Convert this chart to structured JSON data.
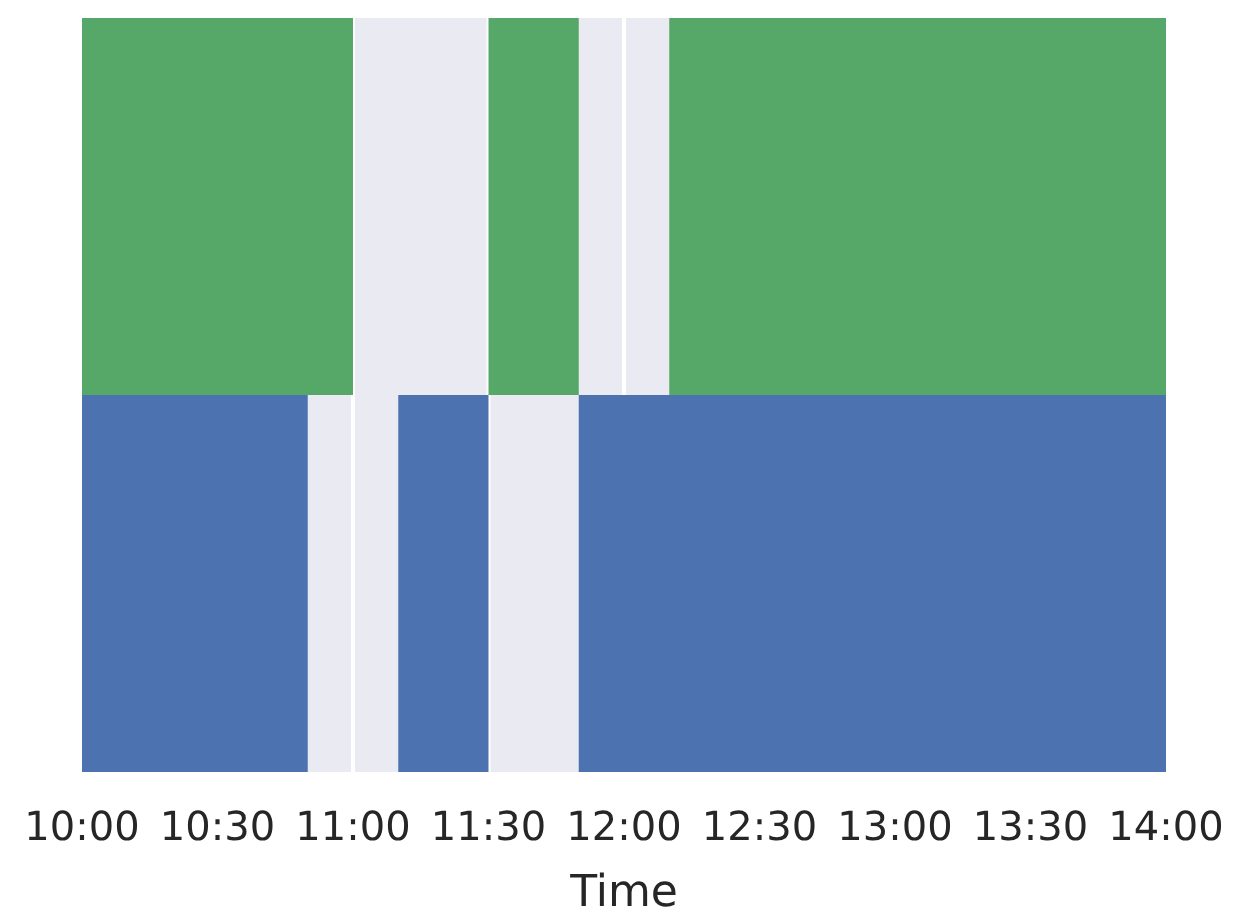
{
  "chart_data": {
    "type": "bar",
    "orientation": "horizontal",
    "xlabel": "Time",
    "categories": [
      null,
      null
    ],
    "series": [
      {
        "color": "#55a868",
        "values": [
          1,
          null
        ],
        "base": [
          10,
          null
        ]
      },
      {
        "color": "#55a868",
        "values": [
          0.333,
          null
        ],
        "base": [
          11.5,
          null
        ]
      },
      {
        "color": "#55a868",
        "values": [
          1.833,
          null
        ],
        "base": [
          12.167,
          null
        ]
      },
      {
        "color": "#4c72b0",
        "values": [
          null,
          0.833
        ],
        "base": [
          null,
          10
        ]
      },
      {
        "color": "#4c72b0",
        "values": [
          null,
          0.333
        ],
        "base": [
          null,
          11.167
        ]
      },
      {
        "color": "#4c72b0",
        "values": [
          null,
          2.167
        ],
        "base": [
          null,
          11.833
        ]
      }
    ],
    "xlim": [
      10,
      14
    ],
    "xticks": [
      {
        "value": 10,
        "label": "10:00"
      },
      {
        "value": 10.5,
        "label": "10:30"
      },
      {
        "value": 11,
        "label": "11:00"
      },
      {
        "value": 11.5,
        "label": "11:30"
      },
      {
        "value": 12,
        "label": "12:00"
      },
      {
        "value": 12.5,
        "label": "12:30"
      },
      {
        "value": 13,
        "label": "13:00"
      },
      {
        "value": 13.5,
        "label": "13:30"
      },
      {
        "value": 14,
        "label": "14:00"
      }
    ],
    "tick_labels": "x",
    "grid": "x"
  }
}
